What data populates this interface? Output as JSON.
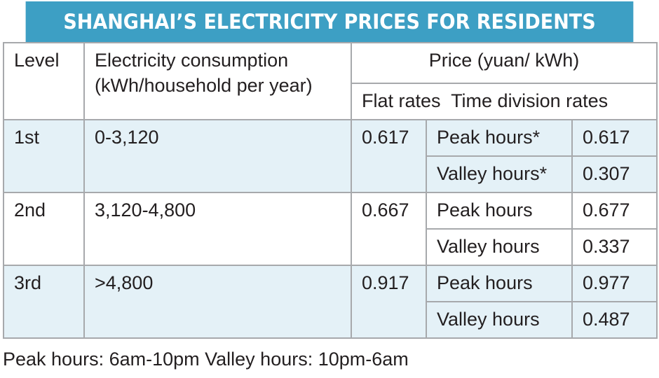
{
  "title": "SHANGHAI’S ELECTRICITY PRICES FOR RESIDENTS",
  "chart_data": {
    "type": "table",
    "title": "SHANGHAI’S ELECTRICITY PRICES FOR RESIDENTS",
    "headers": {
      "level": "Level",
      "consumption_line1": "Electricity consumption",
      "consumption_line2": "(kWh/household per year)",
      "price": "Price (yuan/ kWh)",
      "flat": "Flat rates",
      "time_division": "Time division rates"
    },
    "rows": [
      {
        "level": "1st",
        "consumption": "0-3,120",
        "flat": "0.617",
        "peak_label": "Peak hours*",
        "peak": "0.617",
        "valley_label": "Valley hours*",
        "valley": "0.307"
      },
      {
        "level": "2nd",
        "consumption": "3,120-4,800",
        "flat": "0.667",
        "peak_label": "Peak hours",
        "peak": "0.677",
        "valley_label": "Valley hours",
        "valley": "0.337"
      },
      {
        "level": "3rd",
        "consumption": ">4,800",
        "flat": "0.917",
        "peak_label": "Peak hours",
        "peak": "0.977",
        "valley_label": "Valley hours",
        "valley": "0.487"
      }
    ],
    "footnote": "Peak hours: 6am-10pm Valley hours: 10pm-6am"
  },
  "colors": {
    "title_bg": "#3d9fc4",
    "shade_bg": "#e4f1f7",
    "border": "#a7a9ac"
  }
}
